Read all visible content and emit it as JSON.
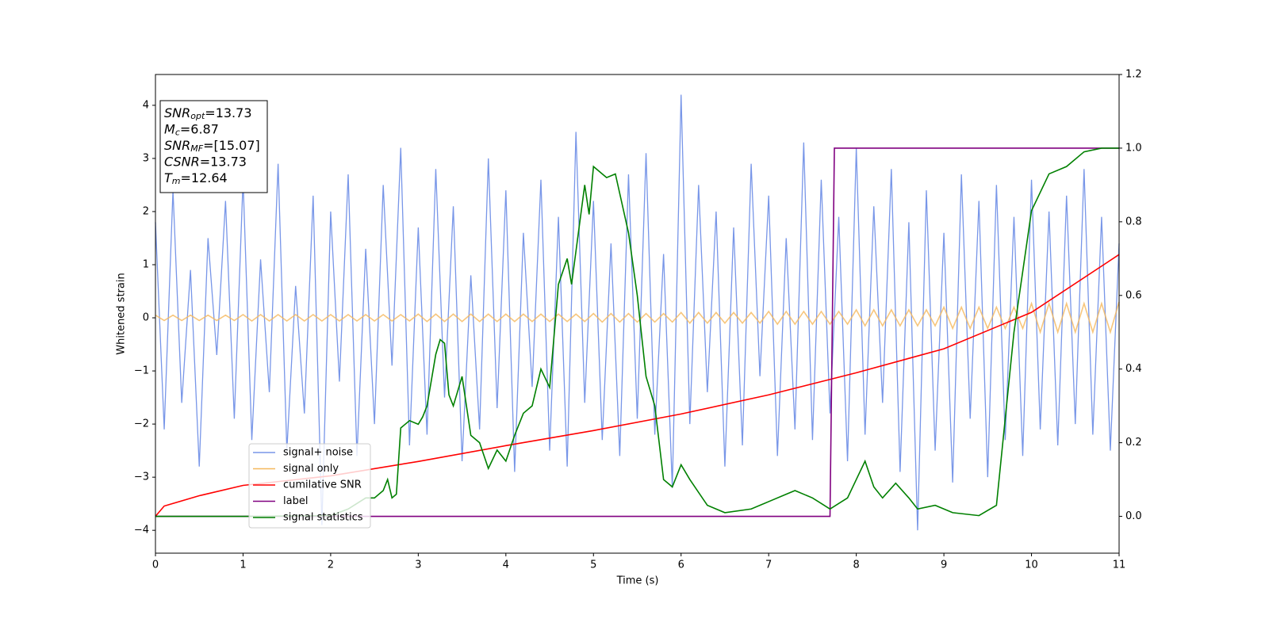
{
  "chart_data": {
    "type": "line",
    "xlabel": "Time (s)",
    "ylabel": "Whitened strain",
    "xlim": [
      0,
      11
    ],
    "xticks": [
      0,
      1,
      2,
      3,
      4,
      5,
      6,
      7,
      8,
      9,
      10,
      11
    ],
    "ylim": [
      -4.43,
      4.58
    ],
    "yticks": [
      {
        "value": -4,
        "label": "−4"
      },
      {
        "value": -3,
        "label": "−3"
      },
      {
        "value": -2,
        "label": "−2"
      },
      {
        "value": -1,
        "label": "−1"
      },
      0,
      1,
      2,
      3,
      4
    ],
    "y2lim": [
      -0.1,
      1.2
    ],
    "y2ticks": [
      {
        "value": 0,
        "label": "0.0"
      },
      0.2,
      0.4,
      0.6,
      0.8,
      {
        "value": 1,
        "label": "1.0"
      },
      1.2
    ],
    "legend": "lower left",
    "annotation": [
      {
        "main": "SNR",
        "sub": "opt",
        "rest": "=13.73"
      },
      {
        "main": "M",
        "sub": "c",
        "rest": "=6.87"
      },
      {
        "main": "SNR",
        "sub": "MF",
        "rest": "=[15.07]"
      },
      {
        "main": "CSNR",
        "sub": "",
        "rest": "=13.73"
      },
      {
        "main": "T",
        "sub": "m",
        "rest": "=12.64"
      }
    ],
    "x": [
      0,
      0.1,
      0.2,
      0.3,
      0.4,
      0.5,
      0.6,
      0.7,
      0.8,
      0.9,
      1,
      1.1,
      1.2,
      1.3,
      1.4,
      1.5,
      1.6,
      1.7,
      1.8,
      1.9,
      2,
      2.1,
      2.2,
      2.3,
      2.4,
      2.5,
      2.6,
      2.7,
      2.8,
      2.9,
      3,
      3.1,
      3.2,
      3.3,
      3.4,
      3.5,
      3.6,
      3.7,
      3.8,
      3.9,
      4,
      4.1,
      4.2,
      4.3,
      4.4,
      4.5,
      4.6,
      4.7,
      4.8,
      4.9,
      5,
      5.1,
      5.2,
      5.3,
      5.4,
      5.5,
      5.6,
      5.7,
      5.8,
      5.9,
      6,
      6.1,
      6.2,
      6.3,
      6.4,
      6.5,
      6.6,
      6.7,
      6.8,
      6.9,
      7,
      7.1,
      7.2,
      7.3,
      7.4,
      7.5,
      7.6,
      7.7,
      7.8,
      7.9,
      8,
      8.1,
      8.2,
      8.3,
      8.4,
      8.5,
      8.6,
      8.7,
      8.8,
      8.9,
      9,
      9.1,
      9.2,
      9.3,
      9.4,
      9.5,
      9.6,
      9.7,
      9.8,
      9.9,
      10,
      10.1,
      10.2,
      10.3,
      10.4,
      10.5,
      10.6,
      10.7,
      10.8,
      10.9,
      11
    ],
    "series": [
      {
        "name": "signal+ noise",
        "color": "#7896e8",
        "values": [
          1.8,
          -2.1,
          2.4,
          -1.6,
          0.9,
          -2.8,
          1.5,
          -0.7,
          2.2,
          -1.9,
          2.6,
          -2.3,
          1.1,
          -1.4,
          2.9,
          -2.5,
          0.6,
          -1.8,
          2.3,
          -3.9,
          2.0,
          -1.2,
          2.7,
          -2.6,
          1.3,
          -2.0,
          2.5,
          -0.9,
          3.2,
          -2.4,
          1.7,
          -2.2,
          2.8,
          -1.5,
          2.1,
          -2.7,
          0.8,
          -2.1,
          3.0,
          -1.7,
          2.4,
          -2.9,
          1.6,
          -1.3,
          2.6,
          -2.5,
          1.9,
          -2.8,
          3.5,
          -1.6,
          2.2,
          -2.3,
          1.4,
          -2.6,
          2.7,
          -1.9,
          3.1,
          -2.2,
          1.2,
          -3.2,
          4.2,
          -2.0,
          2.5,
          -1.4,
          2.0,
          -2.8,
          1.7,
          -2.4,
          2.9,
          -1.1,
          2.3,
          -2.6,
          1.5,
          -2.1,
          3.3,
          -2.3,
          2.6,
          -1.8,
          1.9,
          -2.7,
          3.2,
          -2.2,
          2.1,
          -1.6,
          2.8,
          -2.9,
          1.8,
          -4.0,
          2.4,
          -2.5,
          1.6,
          -3.1,
          2.7,
          -1.9,
          2.2,
          -3.0,
          2.5,
          -2.3,
          1.9,
          -2.6,
          2.6,
          -2.1,
          2.0,
          -2.4,
          2.3,
          -2.0,
          2.8,
          -2.2,
          1.9,
          -2.5,
          1.4
        ]
      },
      {
        "name": "signal only",
        "color": "#f5b85c",
        "values": [
          0.05,
          -0.05,
          0.05,
          -0.05,
          0.05,
          -0.05,
          0.05,
          -0.05,
          0.05,
          -0.05,
          0.06,
          -0.06,
          0.06,
          -0.06,
          0.06,
          -0.06,
          0.06,
          -0.06,
          0.06,
          -0.06,
          0.06,
          -0.06,
          0.06,
          -0.06,
          0.06,
          -0.06,
          0.06,
          -0.06,
          0.06,
          -0.06,
          0.07,
          -0.07,
          0.07,
          -0.07,
          0.07,
          -0.07,
          0.07,
          -0.07,
          0.07,
          -0.07,
          0.07,
          -0.07,
          0.07,
          -0.07,
          0.07,
          -0.07,
          0.07,
          -0.07,
          0.07,
          -0.07,
          0.08,
          -0.08,
          0.08,
          -0.08,
          0.08,
          -0.08,
          0.08,
          -0.08,
          0.08,
          -0.08,
          0.1,
          -0.1,
          0.1,
          -0.1,
          0.1,
          -0.1,
          0.1,
          -0.1,
          0.1,
          -0.1,
          0.12,
          -0.12,
          0.12,
          -0.12,
          0.12,
          -0.12,
          0.12,
          -0.12,
          0.12,
          -0.12,
          0.15,
          -0.15,
          0.15,
          -0.15,
          0.15,
          -0.15,
          0.15,
          -0.15,
          0.15,
          -0.15,
          0.2,
          -0.2,
          0.2,
          -0.2,
          0.2,
          -0.2,
          0.2,
          -0.2,
          0.2,
          -0.2,
          0.27,
          -0.27,
          0.27,
          -0.27,
          0.27,
          -0.27,
          0.27,
          -0.27,
          0.27,
          -0.27,
          0.3
        ]
      },
      {
        "name": "cumilative SNR",
        "color": "#ff0000",
        "axis": "y2",
        "x": [
          0,
          0.1,
          0.5,
          1,
          2,
          3,
          4,
          5,
          6,
          7,
          8,
          9,
          10,
          11
        ],
        "values": [
          0,
          0.028,
          0.056,
          0.084,
          0.11,
          0.149,
          0.192,
          0.233,
          0.278,
          0.33,
          0.39,
          0.455,
          0.554,
          0.711
        ]
      },
      {
        "name": "label",
        "color": "#800080",
        "axis": "y2",
        "x": [
          0,
          7.7,
          7.75,
          11
        ],
        "values": [
          0,
          0,
          1,
          1
        ]
      },
      {
        "name": "signal statistics",
        "color": "#008000",
        "axis": "y2",
        "x": [
          0,
          1,
          2,
          2.2,
          2.4,
          2.5,
          2.6,
          2.65,
          2.7,
          2.75,
          2.8,
          2.9,
          3.0,
          3.05,
          3.1,
          3.2,
          3.25,
          3.3,
          3.35,
          3.4,
          3.5,
          3.6,
          3.7,
          3.8,
          3.9,
          4.0,
          4.1,
          4.2,
          4.3,
          4.4,
          4.5,
          4.6,
          4.7,
          4.75,
          4.9,
          4.95,
          5.0,
          5.15,
          5.25,
          5.4,
          5.5,
          5.6,
          5.7,
          5.8,
          5.9,
          6.0,
          6.1,
          6.3,
          6.5,
          6.8,
          7.0,
          7.2,
          7.3,
          7.5,
          7.7,
          7.9,
          8.0,
          8.1,
          8.2,
          8.3,
          8.45,
          8.6,
          8.7,
          8.9,
          9.1,
          9.4,
          9.6,
          9.8,
          10.0,
          10.2,
          10.4,
          10.6,
          10.8,
          11
        ],
        "values": [
          0,
          0,
          0.002,
          0.02,
          0.05,
          0.05,
          0.07,
          0.1,
          0.05,
          0.06,
          0.24,
          0.26,
          0.25,
          0.27,
          0.3,
          0.44,
          0.48,
          0.47,
          0.33,
          0.3,
          0.38,
          0.22,
          0.2,
          0.13,
          0.18,
          0.15,
          0.22,
          0.28,
          0.3,
          0.4,
          0.35,
          0.63,
          0.7,
          0.63,
          0.9,
          0.82,
          0.95,
          0.92,
          0.93,
          0.77,
          0.6,
          0.38,
          0.3,
          0.1,
          0.08,
          0.14,
          0.1,
          0.03,
          0.01,
          0.02,
          0.04,
          0.06,
          0.07,
          0.05,
          0.02,
          0.05,
          0.1,
          0.15,
          0.08,
          0.05,
          0.09,
          0.05,
          0.02,
          0.03,
          0.01,
          0.002,
          0.03,
          0.5,
          0.83,
          0.93,
          0.95,
          0.99,
          1.0,
          1.0
        ]
      }
    ]
  }
}
